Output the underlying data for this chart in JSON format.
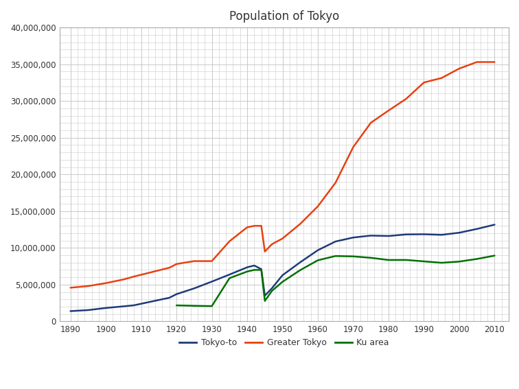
{
  "title": "Population of Tokyo",
  "title_color": "#333333",
  "background_color": "#ffffff",
  "grid_color": "#c8c8c8",
  "xlim": [
    1887,
    2013
  ],
  "ylim": [
    0,
    40000000
  ],
  "yticks": [
    0,
    5000000,
    10000000,
    15000000,
    20000000,
    25000000,
    30000000,
    35000000,
    40000000
  ],
  "xticks": [
    1890,
    1900,
    1910,
    1920,
    1930,
    1940,
    1950,
    1960,
    1970,
    1980,
    1990,
    2000,
    2010
  ],
  "series": {
    "Tokyo-to": {
      "color": "#1e3a78",
      "linewidth": 1.8,
      "years": [
        1890,
        1895,
        1900,
        1905,
        1908,
        1913,
        1918,
        1920,
        1925,
        1930,
        1935,
        1940,
        1942,
        1944,
        1945,
        1947,
        1950,
        1955,
        1960,
        1965,
        1970,
        1975,
        1980,
        1985,
        1990,
        1995,
        2000,
        2005,
        2010
      ],
      "values": [
        1389800,
        1530000,
        1818000,
        2040000,
        2186000,
        2701000,
        3211000,
        3699428,
        4485144,
        5408978,
        6369919,
        7354971,
        7600000,
        7100000,
        3488284,
        4500000,
        6277500,
        8037084,
        9683802,
        10869244,
        11408071,
        11673554,
        11617803,
        11829363,
        11855563,
        11773605,
        12064101,
        12576601,
        13159388
      ]
    },
    "Greater Tokyo": {
      "color": "#e84010",
      "linewidth": 1.8,
      "years": [
        1890,
        1895,
        1900,
        1905,
        1908,
        1913,
        1918,
        1920,
        1925,
        1930,
        1935,
        1940,
        1942,
        1944,
        1945,
        1947,
        1950,
        1955,
        1960,
        1965,
        1970,
        1975,
        1980,
        1985,
        1990,
        1995,
        2000,
        2005,
        2010
      ],
      "values": [
        4576000,
        4800000,
        5200000,
        5700000,
        6100000,
        6700000,
        7300000,
        7800000,
        8200000,
        8200000,
        10900000,
        12800000,
        13000000,
        13000000,
        9500000,
        10500000,
        11274641,
        13261323,
        15659173,
        18869408,
        23717492,
        27040570,
        28697615,
        30296753,
        32513487,
        33126054,
        34410583,
        35300000,
        35300000
      ]
    },
    "Ku area": {
      "color": "#007000",
      "linewidth": 1.8,
      "years": [
        1920,
        1925,
        1930,
        1935,
        1940,
        1942,
        1944,
        1945,
        1947,
        1950,
        1955,
        1960,
        1965,
        1970,
        1975,
        1980,
        1985,
        1990,
        1995,
        2000,
        2005,
        2010
      ],
      "values": [
        2173201,
        2114394,
        2070913,
        5875667,
        6778804,
        7000000,
        7000000,
        2777010,
        4140000,
        5385071,
        6969103,
        8310027,
        8893094,
        8840942,
        8646522,
        8351893,
        8354039,
        8163573,
        7967614,
        8134688,
        8490374,
        8945695
      ]
    }
  },
  "legend": {
    "entries": [
      "Tokyo-to",
      "Greater Tokyo",
      "Ku area"
    ],
    "colors": [
      "#1e3a78",
      "#e84010",
      "#007000"
    ],
    "ncol": 3
  }
}
